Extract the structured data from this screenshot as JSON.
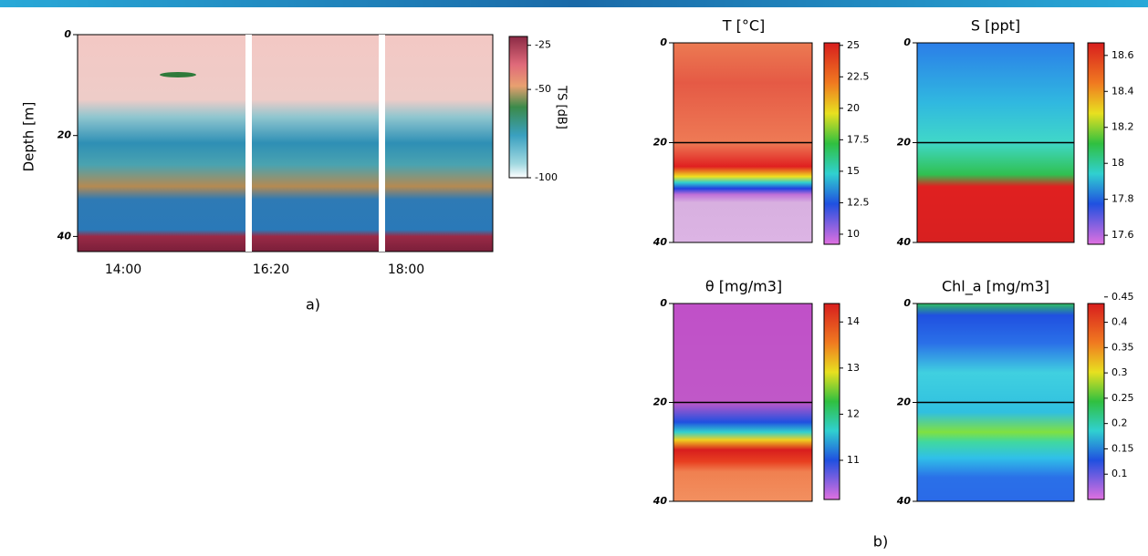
{
  "chart_data": [
    {
      "type": "heatmap",
      "ylabel": "Depth [m]",
      "categories": [
        "14:00",
        "16:20",
        "18:00"
      ],
      "ylim": [
        0,
        43
      ],
      "yticks": [
        0,
        20,
        40
      ],
      "colorbar": {
        "label": "TS [dB]",
        "clim": [
          -100,
          -20
        ],
        "ticks": [
          -25,
          -50,
          -100
        ]
      }
    },
    {
      "type": "heatmap",
      "title": "T [°C]",
      "ylim": [
        0,
        40
      ],
      "yticks": [
        0,
        20,
        40
      ],
      "hline": 20,
      "colorbar": {
        "clim": [
          9.2,
          25.2
        ],
        "ticks": [
          25,
          22.5,
          20,
          17.5,
          15,
          12.5,
          10
        ]
      }
    },
    {
      "type": "heatmap",
      "title": "S [ppt]",
      "ylim": [
        0,
        40
      ],
      "yticks": [
        0,
        20,
        40
      ],
      "hline": 20,
      "colorbar": {
        "clim": [
          17.55,
          18.67
        ],
        "ticks": [
          18.6,
          18.4,
          18.2,
          18,
          17.8,
          17.6
        ]
      }
    },
    {
      "type": "heatmap",
      "title": "θ [mg/m3]",
      "ylim": [
        0,
        40
      ],
      "yticks": [
        0,
        20,
        40
      ],
      "hline": 20,
      "colorbar": {
        "clim": [
          10.15,
          14.4
        ],
        "ticks": [
          14,
          13,
          12,
          11
        ]
      }
    },
    {
      "type": "heatmap",
      "title": "Chl_a [mg/m3]",
      "ylim": [
        0,
        40
      ],
      "yticks": [
        0,
        20,
        40
      ],
      "hline": 20,
      "colorbar": {
        "clim": [
          0.05,
          0.437
        ],
        "ticks": [
          0.45,
          0.4,
          0.35,
          0.3,
          0.25,
          0.2,
          0.15,
          0.1
        ]
      }
    }
  ],
  "captions": [
    "a)",
    "b)"
  ]
}
